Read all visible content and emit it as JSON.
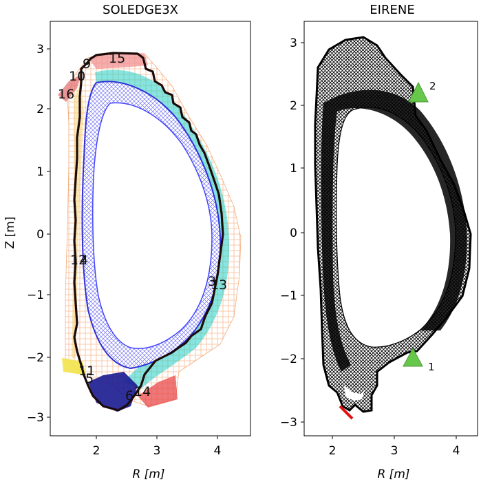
{
  "panels": [
    {
      "title": "SOLEDGE3X",
      "xlabel": "R [m]",
      "ylabel": "Z [m]",
      "x_ticks": [
        "2",
        "3",
        "4"
      ],
      "y_ticks": [
        "3",
        "2",
        "1",
        "0",
        "−1",
        "−2",
        "−3"
      ],
      "region_labels": [
        "15",
        "9",
        "10",
        "16",
        "12",
        "4",
        "3",
        "13",
        "11",
        "5",
        "6",
        "14"
      ]
    },
    {
      "title": "EIRENE",
      "xlabel": "R [m]",
      "ylabel": "",
      "x_ticks": [
        "2",
        "3",
        "4"
      ],
      "y_ticks": [
        "3",
        "2",
        "1",
        "0",
        "−1",
        "−2",
        "−3"
      ],
      "markers": [
        {
          "label": "2",
          "R": 3.33,
          "Z": 2.2,
          "color": "#66c74a"
        },
        {
          "label": "1",
          "R": 3.3,
          "Z": -2.0,
          "color": "#66c74a"
        }
      ]
    }
  ],
  "colors": {
    "mesh_blue": "#3a3ae0",
    "mesh_cyan": "#19d3d3",
    "mesh_orange": "#f6a86a",
    "mesh_red": "#e04848",
    "mesh_yellow": "#f2e34b",
    "wall": "#1c0a0a",
    "eirene_mesh": "#000000",
    "marker": "#66c74a",
    "pump": "#e01010"
  }
}
